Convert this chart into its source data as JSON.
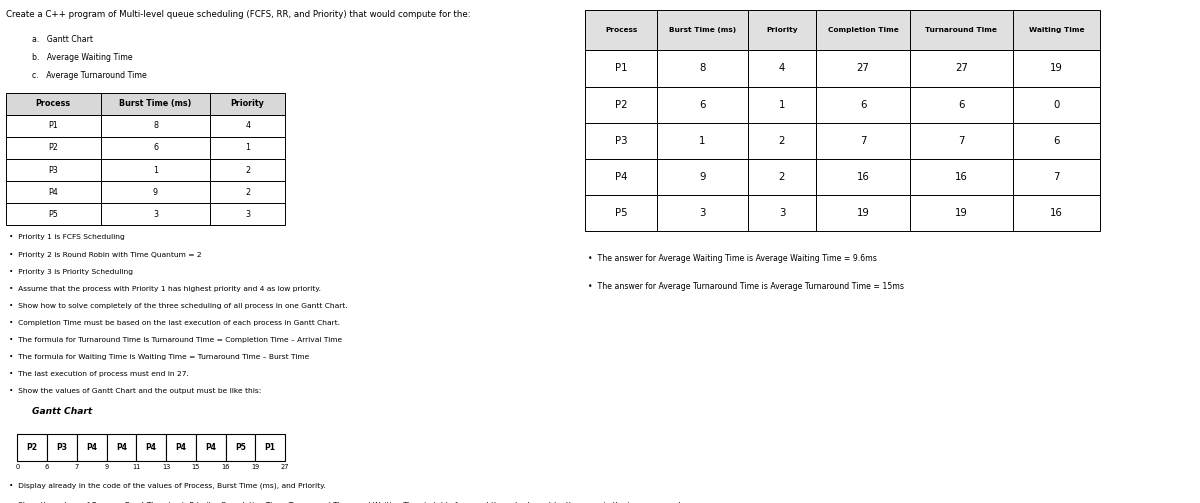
{
  "title_main": "Create a C++ program of Multi-level queue scheduling (FCFS, RR, and Priority) that would compute for the:",
  "items_abc": [
    "a.   Gantt Chart",
    "b.   Average Waiting Time",
    "c.   Average Turnaround Time"
  ],
  "input_table_headers": [
    "Process",
    "Burst Time (ms)",
    "Priority"
  ],
  "input_table_data": [
    [
      "P1",
      "8",
      "4"
    ],
    [
      "P2",
      "6",
      "1"
    ],
    [
      "P3",
      "1",
      "2"
    ],
    [
      "P4",
      "9",
      "2"
    ],
    [
      "P5",
      "3",
      "3"
    ]
  ],
  "bullet_points": [
    "Priority 1 is FCFS Scheduling",
    "Priority 2 is Round Robin with Time Quantum = 2",
    "Priority 3 is Priority Scheduling",
    "Assume that the process with Priority 1 has highest priority and 4 as low priority.",
    "Show how to solve completely of the three scheduling of all process in one Gantt Chart.",
    "Completion Time must be based on the last execution of each process in Gantt Chart.",
    "The formula for Turnaround Time is Turnaround Time = Completion Time – Arrival Time",
    "The formula for Waiting Time is Waiting Time = Turnaround Time – Burst Time",
    "The last execution of process must end in 27.",
    "Show the values of Gantt Chart and the output must be like this:"
  ],
  "gantt_title": "Gantt Chart",
  "gantt_labels": [
    "P2",
    "P3",
    "P4",
    "P4",
    "P4",
    "P4",
    "P4",
    "P5",
    "P1"
  ],
  "gantt_times": [
    0,
    6,
    7,
    9,
    11,
    13,
    15,
    16,
    19,
    27
  ],
  "bullet_points2": [
    "Display already in the code of the values of Process, Burst Time (ms), and Priority.",
    "Show the values of Process, Burst Time (ms), Priority, Completion Time, Turnaround Time, and Waiting Time in table form and the output must be the same in the image on next page:"
  ],
  "output_table_headers": [
    "Process",
    "Burst Time (ms)",
    "Priority",
    "Completion Time",
    "Turnaround Time",
    "Waiting Time"
  ],
  "output_table_data": [
    [
      "P1",
      "8",
      "4",
      "27",
      "27",
      "19"
    ],
    [
      "P2",
      "6",
      "1",
      "6",
      "6",
      "0"
    ],
    [
      "P3",
      "1",
      "2",
      "7",
      "7",
      "6"
    ],
    [
      "P4",
      "9",
      "2",
      "16",
      "16",
      "7"
    ],
    [
      "P5",
      "3",
      "3",
      "19",
      "19",
      "16"
    ]
  ],
  "avg_bullet_points": [
    "The answer for Average Waiting Time is Average Waiting Time = 9.6ms",
    "The answer for Average Turnaround Time is Average Turnaround Time = 15ms"
  ],
  "bg_color": "#ffffff",
  "text_color": "#000000"
}
